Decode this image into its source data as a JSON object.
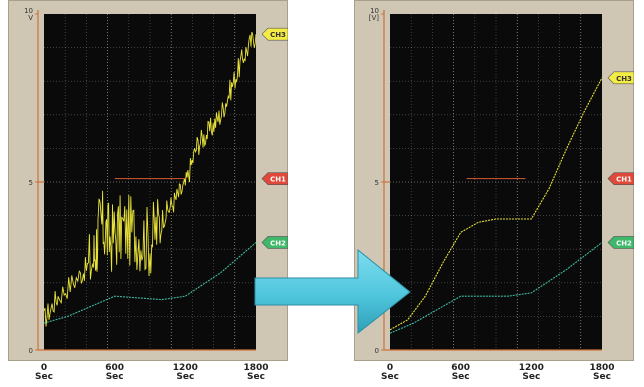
{
  "chart_data": [
    {
      "type": "line",
      "panel": "before",
      "ylim": [
        0,
        10
      ],
      "xlim": [
        0,
        1800
      ],
      "x_ticks": [
        {
          "value": "0",
          "unit": "Sec"
        },
        {
          "value": "600",
          "unit": "Sec"
        },
        {
          "value": "1200",
          "unit": "Sec"
        },
        {
          "value": "1800",
          "unit": "Sec"
        }
      ],
      "y_ticks": [
        {
          "value": 10,
          "label": "10\nV"
        },
        {
          "value": 5,
          "label": "5"
        },
        {
          "value": 0,
          "label": "0"
        }
      ],
      "grid": true,
      "series": [
        {
          "name": "CH3",
          "color": "#e8e23a",
          "noisy": true,
          "points": [
            [
              0,
              0.9
            ],
            [
              120,
              1.6
            ],
            [
              300,
              2.2
            ],
            [
              420,
              2.7
            ],
            [
              480,
              3.8
            ],
            [
              560,
              3.3
            ],
            [
              660,
              3.6
            ],
            [
              780,
              3.5
            ],
            [
              900,
              3.2
            ],
            [
              1000,
              3.9
            ],
            [
              1100,
              4.4
            ],
            [
              1200,
              4.9
            ],
            [
              1300,
              6.1
            ],
            [
              1400,
              6.5
            ],
            [
              1500,
              7.0
            ],
            [
              1600,
              7.9
            ],
            [
              1700,
              8.8
            ],
            [
              1800,
              9.4
            ]
          ]
        },
        {
          "name": "CH1",
          "color": "#c0502a",
          "points": [
            [
              600,
              5.1
            ],
            [
              1200,
              5.1
            ]
          ]
        },
        {
          "name": "CH2",
          "color": "#3fb8a0",
          "points": [
            [
              0,
              0.8
            ],
            [
              200,
              1.0
            ],
            [
              600,
              1.6
            ],
            [
              1000,
              1.5
            ],
            [
              1200,
              1.6
            ],
            [
              1500,
              2.3
            ],
            [
              1800,
              3.2
            ]
          ]
        }
      ]
    },
    {
      "type": "line",
      "panel": "after",
      "ylim": [
        0,
        10
      ],
      "xlim": [
        0,
        1800
      ],
      "x_ticks": [
        {
          "value": "0",
          "unit": "Sec"
        },
        {
          "value": "600",
          "unit": "Sec"
        },
        {
          "value": "1200",
          "unit": "Sec"
        },
        {
          "value": "1800",
          "unit": "Sec"
        }
      ],
      "y_ticks": [
        {
          "value": 10,
          "label": "10\n[V]"
        },
        {
          "value": 5,
          "label": "5"
        },
        {
          "value": 0,
          "label": "0"
        }
      ],
      "grid": true,
      "series": [
        {
          "name": "CH3",
          "color": "#e8e23a",
          "noisy": false,
          "points": [
            [
              0,
              0.6
            ],
            [
              150,
              0.9
            ],
            [
              300,
              1.6
            ],
            [
              450,
              2.6
            ],
            [
              600,
              3.5
            ],
            [
              750,
              3.8
            ],
            [
              900,
              3.9
            ],
            [
              1050,
              3.9
            ],
            [
              1200,
              3.9
            ],
            [
              1350,
              4.8
            ],
            [
              1500,
              6.0
            ],
            [
              1650,
              7.1
            ],
            [
              1800,
              8.1
            ]
          ]
        },
        {
          "name": "CH1",
          "color": "#c0502a",
          "points": [
            [
              650,
              5.1
            ],
            [
              1150,
              5.1
            ]
          ]
        },
        {
          "name": "CH2",
          "color": "#3fb8a0",
          "points": [
            [
              0,
              0.5
            ],
            [
              200,
              0.8
            ],
            [
              600,
              1.6
            ],
            [
              1000,
              1.6
            ],
            [
              1200,
              1.7
            ],
            [
              1500,
              2.4
            ],
            [
              1800,
              3.2
            ]
          ]
        }
      ]
    }
  ],
  "colors": {
    "plot_bg": "#0a0a0a",
    "frame": "#cfc7b4",
    "grid": "#ffffff",
    "axis": "#d0703a",
    "tag_ch3": "#f2ec45",
    "tag_ch1": "#e0483a",
    "tag_ch2": "#3fb86a",
    "arrow": "#4fc6dd"
  },
  "arrow_icon": "right-arrow-icon"
}
